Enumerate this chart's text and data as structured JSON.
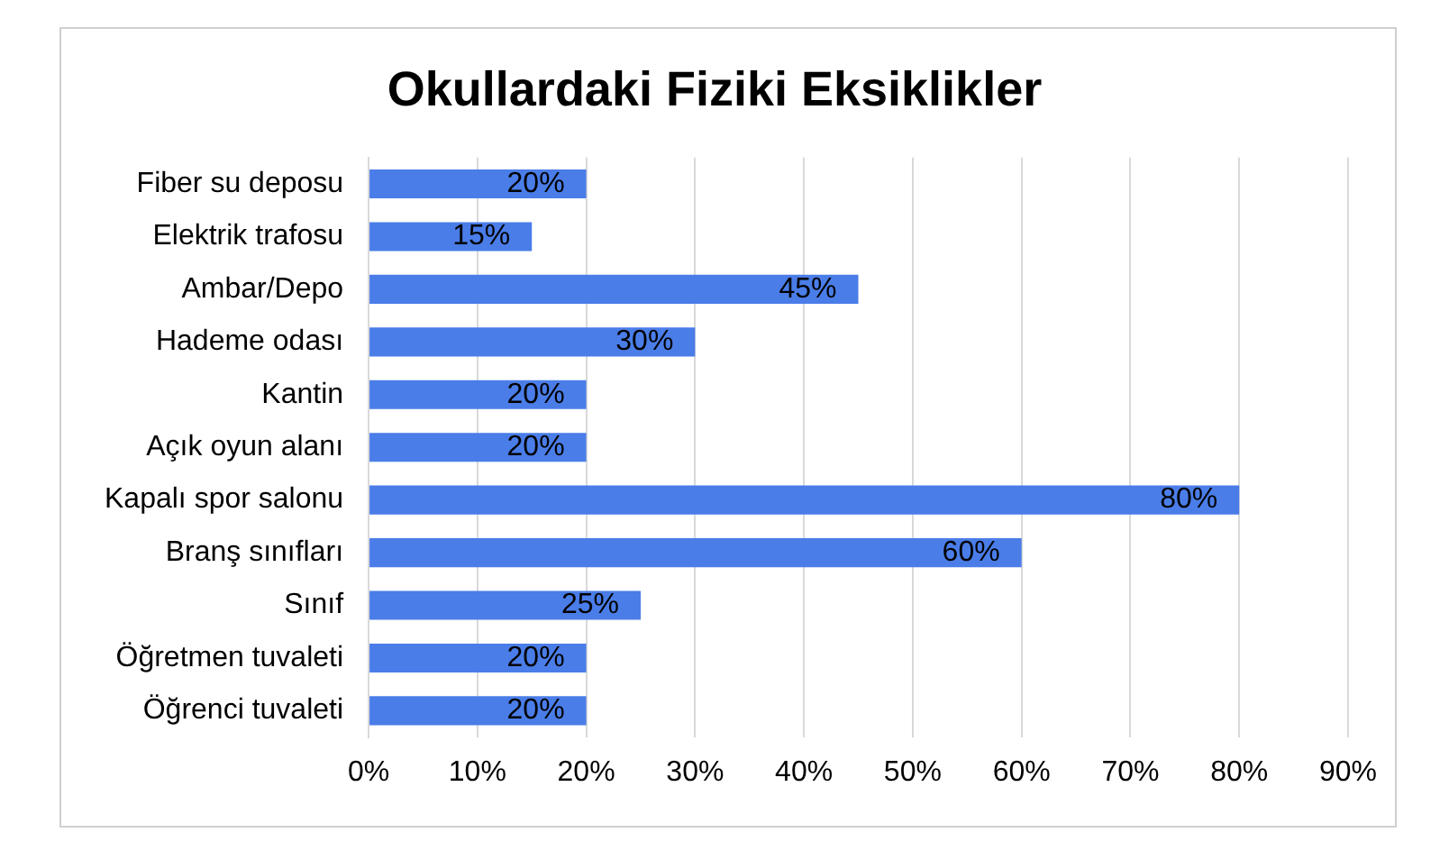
{
  "chart_data": {
    "type": "bar",
    "orientation": "horizontal",
    "title": "Okullardaki Fiziki Eksiklikler",
    "categories": [
      "Fiber su deposu",
      "Elektrik trafosu",
      "Ambar/Depo",
      "Hademe odası",
      "Kantin",
      "Açık oyun alanı",
      "Kapalı spor salonu",
      "Branş sınıfları",
      "Sınıf",
      "Öğretmen tuvaleti",
      "Öğrenci tuvaleti"
    ],
    "values": [
      20,
      15,
      45,
      30,
      20,
      20,
      80,
      60,
      25,
      20,
      20
    ],
    "value_labels": [
      "20%",
      "15%",
      "45%",
      "30%",
      "20%",
      "20%",
      "80%",
      "60%",
      "25%",
      "20%",
      "20%"
    ],
    "color": "#4a7de8",
    "xlim": [
      0,
      90
    ],
    "xticks": [
      {
        "value": 0,
        "label": "0%"
      },
      {
        "value": 10,
        "label": "10%"
      },
      {
        "value": 20,
        "label": "20%"
      },
      {
        "value": 30,
        "label": "30%"
      },
      {
        "value": 40,
        "label": "40%"
      },
      {
        "value": 50,
        "label": "50%"
      },
      {
        "value": 60,
        "label": "60%"
      },
      {
        "value": 70,
        "label": "70%"
      },
      {
        "value": 80,
        "label": "80%"
      },
      {
        "value": 90,
        "label": "90%"
      }
    ],
    "grid": "x",
    "legend": false
  }
}
